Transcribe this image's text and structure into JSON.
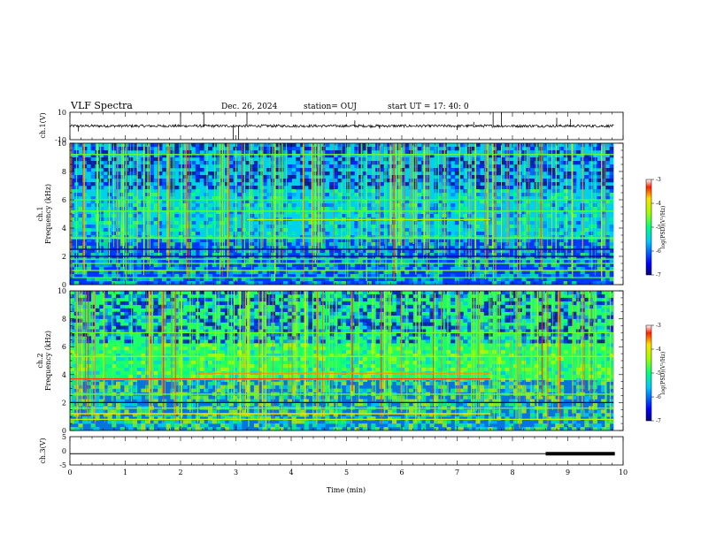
{
  "header": {
    "title": "VLF Spectra",
    "date": "Dec. 26, 2024",
    "station": "station= OUJ",
    "start": "start  UT  =   17: 40: 0"
  },
  "chart_data": [
    {
      "type": "line",
      "name": "ch1-waveform",
      "ylabel": "ch.1(V)",
      "ylim": [
        -10,
        10
      ],
      "yticks": [
        10,
        -10
      ],
      "xlim": [
        0,
        10
      ],
      "baseline": 0,
      "noise_amplitude": 1,
      "spikes": [
        {
          "t": 0.15,
          "v": -4
        },
        {
          "t": 2.0,
          "v": 10
        },
        {
          "t": 2.42,
          "v": 10
        },
        {
          "t": 2.95,
          "v": -10
        },
        {
          "t": 3.05,
          "v": -10
        },
        {
          "t": 3.2,
          "v": 10
        },
        {
          "t": 5.15,
          "v": 4
        },
        {
          "t": 5.6,
          "v": -2
        },
        {
          "t": 7.0,
          "v": -3
        },
        {
          "t": 7.3,
          "v": 3
        },
        {
          "t": 7.65,
          "v": 10
        },
        {
          "t": 7.8,
          "v": 10
        },
        {
          "t": 8.8,
          "v": 6
        },
        {
          "t": 9.05,
          "v": 5
        }
      ]
    },
    {
      "type": "heatmap",
      "name": "ch1-spectrogram",
      "ylabel": "ch.1\nFrequency (kHz)",
      "ylim": [
        0,
        10
      ],
      "yticks": [
        0,
        2,
        4,
        6,
        8,
        10
      ],
      "xlim": [
        0,
        10
      ],
      "value_range": [
        -7,
        -3
      ],
      "background_level": -5.5,
      "low_band": {
        "from": 0,
        "to": 3.2,
        "level": -6.5
      },
      "lines": [
        {
          "f": 0.5,
          "level": -4.8,
          "t0": 0,
          "t1": 10
        },
        {
          "f": 1.0,
          "level": -4.4,
          "t0": 0,
          "t1": 10
        },
        {
          "f": 1.5,
          "level": -4.6,
          "t0": 0,
          "t1": 10
        },
        {
          "f": 1.8,
          "level": -4.8,
          "t0": 0,
          "t1": 10
        },
        {
          "f": 2.0,
          "level": -7.0,
          "t0": 0,
          "t1": 10
        },
        {
          "f": 2.5,
          "level": -7.0,
          "t0": 0,
          "t1": 10
        },
        {
          "f": 3.3,
          "level": -4.6,
          "t0": 0,
          "t1": 10
        },
        {
          "f": 4.6,
          "level": -4.3,
          "t0": 3.2,
          "t1": 7.6
        },
        {
          "f": 5.2,
          "level": -4.7,
          "t0": 0,
          "t1": 10
        },
        {
          "f": 6.0,
          "level": -4.8,
          "t0": 0,
          "t1": 10
        },
        {
          "f": 9.2,
          "level": -4.6,
          "t0": 0,
          "t1": 10
        }
      ]
    },
    {
      "type": "heatmap",
      "name": "ch2-spectrogram",
      "ylabel": "ch.2\nFrequency (kHz)",
      "ylim": [
        0,
        10
      ],
      "yticks": [
        0,
        2,
        4,
        6,
        8,
        10
      ],
      "xlim": [
        0,
        10
      ],
      "value_range": [
        -7,
        -3
      ],
      "background_level": -4.9,
      "low_band": {
        "from": 0,
        "to": 3.6,
        "level": -6.2
      },
      "lines": [
        {
          "f": 0.8,
          "level": -4.3,
          "t0": 0,
          "t1": 10
        },
        {
          "f": 1.2,
          "level": -3.8,
          "t0": 0,
          "t1": 7.6
        },
        {
          "f": 1.6,
          "level": -4.5,
          "t0": 0,
          "t1": 10
        },
        {
          "f": 2.0,
          "level": -7.0,
          "t0": 0,
          "t1": 10
        },
        {
          "f": 2.6,
          "level": -4.6,
          "t0": 0,
          "t1": 10
        },
        {
          "f": 3.7,
          "level": -3.4,
          "t0": 0,
          "t1": 7.6
        },
        {
          "f": 4.1,
          "level": -3.6,
          "t0": 2.3,
          "t1": 7.6
        },
        {
          "f": 5.3,
          "level": -4.4,
          "t0": 0,
          "t1": 10
        },
        {
          "f": 7.0,
          "level": -4.6,
          "t0": 0,
          "t1": 10
        }
      ]
    },
    {
      "type": "line",
      "name": "ch3-trace",
      "ylabel": "ch.3(V)",
      "ylim": [
        -5,
        5
      ],
      "yticks": [
        5,
        0,
        -5
      ],
      "xlim": [
        0,
        10
      ],
      "baseline": -1,
      "thick_segment": {
        "t0": 8.6,
        "t1": 9.85,
        "v": -1
      },
      "xlabel": "Time  (min)",
      "xticks": [
        0,
        1,
        2,
        3,
        4,
        5,
        6,
        7,
        8,
        9,
        10
      ]
    }
  ],
  "colorbars": [
    {
      "label": "log(PSD)(V²/Hz)",
      "ticks": [
        "-3",
        "-4",
        "-5",
        "-6",
        "-7"
      ]
    },
    {
      "label": "log(PSD)(V²/Hz)",
      "ticks": [
        "-3",
        "-4",
        "-5",
        "-6",
        "-7"
      ]
    }
  ]
}
